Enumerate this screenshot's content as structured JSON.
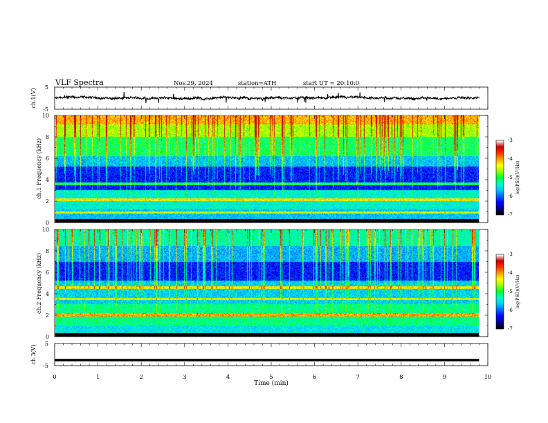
{
  "header": {
    "title": "VLF Spectra",
    "date": "Nov.29, 2024",
    "station": "station=ATH",
    "start": "start UT = 20:10:0"
  },
  "colors": {
    "colormap": [
      "#000000",
      "#00008b",
      "#0000ff",
      "#0064ff",
      "#00c8ff",
      "#00ffc8",
      "#00ff32",
      "#96ff00",
      "#ffff00",
      "#ffa000",
      "#ff3200",
      "#c80000",
      "#ffffff"
    ]
  },
  "chart_data": [
    {
      "id": "ch1-voltage",
      "type": "line",
      "ylabel": "ch.1(V)",
      "ylim": [
        -5,
        5
      ],
      "yticks": [
        "5",
        "-5"
      ],
      "xlim": [
        0,
        10
      ],
      "trace_level_V": 0,
      "series": [
        {
          "x_range_min": [
            0,
            9.8
          ]
        }
      ]
    },
    {
      "id": "ch1-spectrogram",
      "type": "heatmap",
      "ylabel": "ch.1 Frequency (kHz)",
      "xlim": [
        0,
        10
      ],
      "ylim": [
        0,
        10
      ],
      "yticks": [
        "0",
        "2",
        "4",
        "6",
        "8",
        "10"
      ],
      "data_extent_min": [
        0,
        9.8
      ],
      "colorbar": {
        "label": "log(PSD)(V²/Hz)",
        "ticks": [
          "-3",
          "-4",
          "-5",
          "-6",
          "-7"
        ],
        "range": [
          -7,
          -3
        ]
      }
    },
    {
      "id": "ch2-spectrogram",
      "type": "heatmap",
      "ylabel": "ch.2 Frequency (kHz)",
      "xlim": [
        0,
        10
      ],
      "ylim": [
        0,
        10
      ],
      "yticks": [
        "0",
        "2",
        "4",
        "6",
        "8",
        "10"
      ],
      "data_extent_min": [
        0,
        9.8
      ],
      "colorbar": {
        "label": "log(PSD)(V²/Hz)",
        "ticks": [
          "-3",
          "-4",
          "-5",
          "-6",
          "-7"
        ],
        "range": [
          -7,
          -3
        ]
      }
    },
    {
      "id": "ch3-voltage",
      "type": "line",
      "ylabel": "ch.3(V)",
      "ylim": [
        -5,
        5
      ],
      "yticks": [
        "5",
        "-5"
      ],
      "xlim": [
        0,
        10
      ],
      "trace_level_V": -2.5,
      "series": [
        {
          "x_range_min": [
            0,
            9.8
          ]
        }
      ]
    }
  ],
  "xaxis": {
    "label": "Time (min)",
    "ticks": [
      "0",
      "1",
      "2",
      "3",
      "4",
      "5",
      "6",
      "7",
      "8",
      "9",
      "10"
    ]
  }
}
